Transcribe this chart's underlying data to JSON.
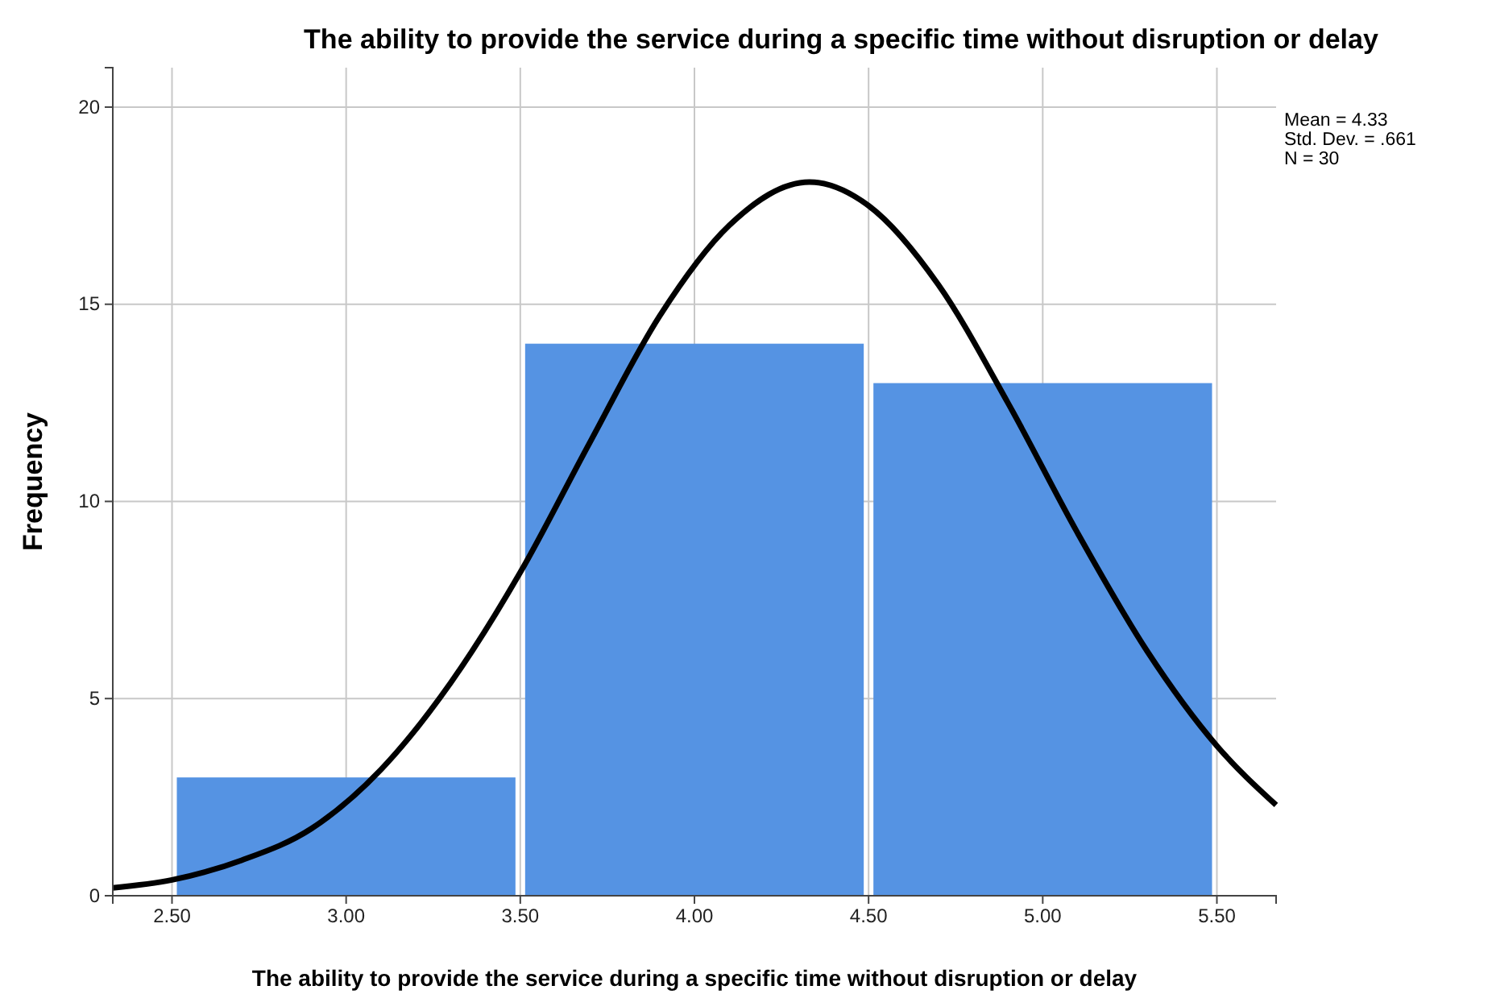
{
  "chart_data": {
    "type": "histogram",
    "title": "The ability to provide the service during a specific time without disruption or delay",
    "xlabel": "The ability to provide the service during a specific time without disruption or delay",
    "ylabel": "Frequency",
    "bins": [
      2.5,
      3.5,
      4.5,
      5.5
    ],
    "values": [
      3,
      14,
      13
    ],
    "color": "#5593e3",
    "series": [
      {
        "type": "line",
        "color": "#000000",
        "x": [
          2.33,
          2.5,
          2.7,
          2.9,
          3.1,
          3.3,
          3.5,
          3.7,
          3.9,
          4.1,
          4.33,
          4.5,
          4.7,
          4.9,
          5.1,
          5.3,
          5.5,
          5.67
        ],
        "values": [
          0.2,
          0.4,
          0.9,
          1.7,
          3.2,
          5.4,
          8.2,
          11.5,
          14.7,
          17.0,
          18.1,
          17.5,
          15.5,
          12.5,
          9.2,
          6.2,
          3.8,
          2.3
        ]
      }
    ],
    "xlim": [
      2.33,
      5.67
    ],
    "xticks": [
      {
        "value": 2.5,
        "label": "2.50"
      },
      {
        "value": 3,
        "label": "3.00"
      },
      {
        "value": 3.5,
        "label": "3.50"
      },
      {
        "value": 4,
        "label": "4.00"
      },
      {
        "value": 4.5,
        "label": "4.50"
      },
      {
        "value": 5,
        "label": "5.00"
      },
      {
        "value": 5.5,
        "label": "5.50"
      }
    ],
    "ylim": [
      0,
      21
    ],
    "yticks": [
      0,
      5,
      10,
      15,
      20
    ],
    "grid": true,
    "annotations": [
      "Mean = 4.33",
      "Std. Dev. = .661",
      "N = 30"
    ]
  }
}
